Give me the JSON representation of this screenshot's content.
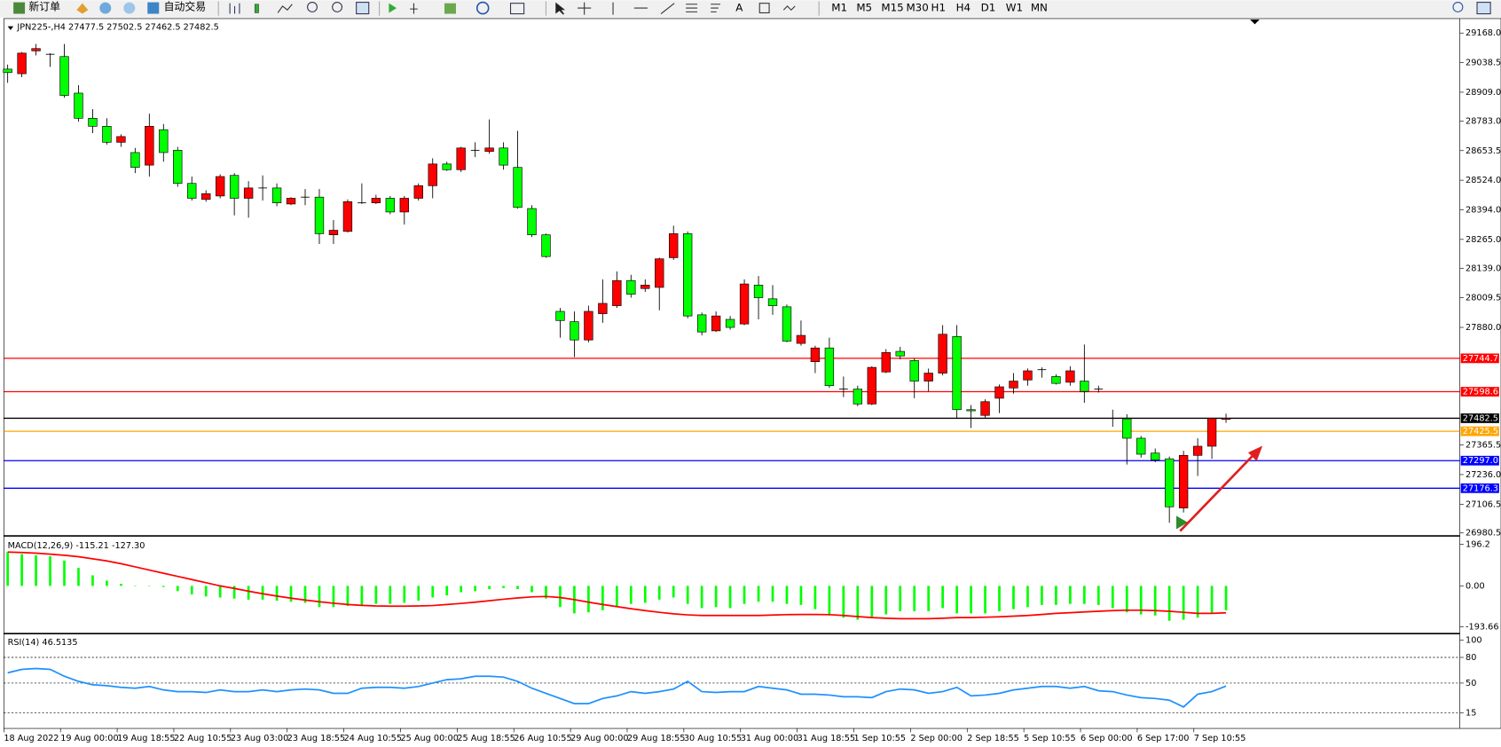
{
  "toolbar": {
    "new_order": "新订单",
    "auto_trading": "自动交易",
    "timeframes": [
      "M1",
      "M5",
      "M15",
      "M30",
      "H1",
      "H4",
      "D1",
      "W1",
      "MN"
    ]
  },
  "chart_data": [
    {
      "type": "candlestick",
      "title": "JPN225-,H4  27477.5 27502.5 27462.5 27482.5",
      "up_color": "#ff0000",
      "down_color": "#00ff00",
      "x_labels": [
        "18 Aug 2022",
        "19 Aug 00:00",
        "19 Aug 18:55",
        "22 Aug 10:55",
        "23 Aug 03:00",
        "23 Aug 18:55",
        "24 Aug 10:55",
        "25 Aug 00:00",
        "25 Aug 18:55",
        "26 Aug 10:55",
        "29 Aug 00:00",
        "29 Aug 18:55",
        "30 Aug 10:55",
        "31 Aug 00:00",
        "31 Aug 18:55",
        "1 Sep 10:55",
        "2 Sep 00:00",
        "2 Sep 18:55",
        "5 Sep 10:55",
        "6 Sep 00:00",
        "6 Sep 17:00",
        "7 Sep 10:55"
      ],
      "open": [
        29010,
        28990,
        29090,
        29075,
        29065,
        28905,
        28795,
        28760,
        28690,
        28645,
        28590,
        28745,
        28655,
        28510,
        28440,
        28455,
        28545,
        28445,
        28490,
        28490,
        28420,
        28450,
        28450,
        28285,
        28300,
        28425,
        28425,
        28445,
        28385,
        28445,
        28500,
        28595,
        28570,
        28655,
        28650,
        28665,
        28580,
        28400,
        28285,
        27950,
        27905,
        27825,
        27940,
        27975,
        28085,
        28050,
        28055,
        28185,
        28290,
        27935,
        27865,
        27915,
        27895,
        28065,
        28005,
        27970,
        27810,
        27730,
        27790,
        27610,
        27610,
        27545,
        27685,
        27775,
        27735,
        27645,
        27680,
        27840,
        27520,
        27495,
        27570,
        27615,
        27650,
        27695,
        27665,
        27640,
        27645,
        27610,
        27482,
        27480,
        27395,
        27330,
        27305,
        27090,
        27320,
        27360,
        27477.5
      ],
      "high": [
        29030,
        29085,
        29120,
        29080,
        29120,
        28940,
        28835,
        28795,
        28725,
        28665,
        28815,
        28770,
        28670,
        28540,
        28480,
        28550,
        28555,
        28520,
        28545,
        28510,
        28450,
        28485,
        28485,
        28350,
        28440,
        28510,
        28460,
        28455,
        28455,
        28510,
        28620,
        28605,
        28670,
        28690,
        28790,
        28690,
        28740,
        28415,
        28290,
        27965,
        27950,
        27975,
        28090,
        28125,
        28110,
        28090,
        28185,
        28325,
        28300,
        27945,
        27950,
        27930,
        28090,
        28105,
        28065,
        27980,
        27910,
        27800,
        27835,
        27665,
        27625,
        27710,
        27785,
        27795,
        27745,
        27700,
        27890,
        27890,
        27540,
        27565,
        27630,
        27680,
        27700,
        27705,
        27675,
        27710,
        27805,
        27625,
        27520,
        27500,
        27405,
        27350,
        27315,
        27340,
        27395,
        27485,
        27502.5
      ],
      "low": [
        28950,
        28975,
        29070,
        29020,
        28885,
        28780,
        28730,
        28680,
        28670,
        28555,
        28540,
        28605,
        28495,
        28435,
        28430,
        28445,
        28370,
        28360,
        28435,
        28410,
        28415,
        28415,
        28245,
        28245,
        28295,
        28420,
        28420,
        28375,
        28330,
        28435,
        28445,
        28565,
        28560,
        28625,
        28640,
        28570,
        28400,
        28275,
        28185,
        27835,
        27750,
        27815,
        27900,
        27965,
        28010,
        28035,
        27955,
        28175,
        27920,
        27845,
        27860,
        27870,
        27890,
        27915,
        27935,
        27815,
        27800,
        27680,
        27615,
        27575,
        27535,
        27540,
        27680,
        27740,
        27570,
        27600,
        27670,
        27480,
        27440,
        27485,
        27505,
        27590,
        27625,
        27660,
        27630,
        27625,
        27550,
        27595,
        27445,
        27280,
        27310,
        27290,
        27025,
        27070,
        27230,
        27305,
        27462.5
      ],
      "close": [
        28995,
        29080,
        29100,
        29075,
        28895,
        28795,
        28760,
        28690,
        28715,
        28580,
        28760,
        28645,
        28510,
        28445,
        28465,
        28540,
        28445,
        28490,
        28490,
        28425,
        28445,
        28450,
        28290,
        28305,
        28430,
        28425,
        28445,
        28385,
        28445,
        28500,
        28595,
        28570,
        28665,
        28655,
        28665,
        28590,
        28405,
        28285,
        28190,
        27910,
        27825,
        27950,
        27985,
        28085,
        28025,
        28065,
        28180,
        28290,
        27930,
        27860,
        27930,
        27880,
        28070,
        28010,
        27975,
        27820,
        27845,
        27790,
        27625,
        27610,
        27545,
        27705,
        27770,
        27755,
        27645,
        27680,
        27850,
        27520,
        27515,
        27555,
        27620,
        27645,
        27690,
        27695,
        27635,
        27690,
        27600,
        27608,
        27480,
        27395,
        27325,
        27300,
        27095,
        27320,
        27360,
        27482,
        27482.5
      ],
      "ylim": [
        26972,
        29227
      ],
      "yticks": [
        {
          "value": 29168,
          "label": "29168.0"
        },
        29038.5,
        {
          "value": 28909,
          "label": "28909.0"
        },
        {
          "value": 28783,
          "label": "28783.0"
        },
        28653.5,
        {
          "value": 28524,
          "label": "28524.0"
        },
        {
          "value": 28394,
          "label": "28394.0"
        },
        {
          "value": 28265,
          "label": "28265.0"
        },
        {
          "value": 28139,
          "label": "28139.0"
        },
        28009.5,
        {
          "value": 27880,
          "label": "27880.0"
        },
        27365.5,
        {
          "value": 27236,
          "label": "27236.0"
        },
        27106.5,
        26980.5
      ],
      "levels": [
        {
          "value": 27744.7,
          "label": "27744.7",
          "color": "#ff0000"
        },
        {
          "value": 27598.6,
          "label": "27598.6",
          "color": "#ff0000"
        },
        {
          "value": 27482.5,
          "label": "27482.5",
          "color": "#000000"
        },
        {
          "value": 27425.5,
          "label": "27425.5",
          "color": "#ffa500"
        },
        {
          "value": 27297,
          "label": "27297.0",
          "color": "#0000ff"
        },
        {
          "value": 27176.3,
          "label": "27176.3",
          "color": "#0000ff"
        }
      ]
    },
    {
      "type": "macd",
      "title": "MACD(12,26,9) -115.21 -127.30",
      "ylim": [
        -221,
        223
      ],
      "yticks": [
        196.2,
        {
          "value": 0,
          "label": "0.00"
        },
        -193.66
      ],
      "series": [
        {
          "style": "bar",
          "color": "#00ff00",
          "values": [
            160,
            150,
            145,
            140,
            120,
            85,
            50,
            25,
            10,
            2,
            -2,
            -5,
            -25,
            -40,
            -50,
            -55,
            -60,
            -65,
            -65,
            -70,
            -75,
            -80,
            -100,
            -100,
            -95,
            -90,
            -85,
            -85,
            -80,
            -70,
            -55,
            -45,
            -30,
            -25,
            -15,
            -10,
            -15,
            -30,
            -60,
            -100,
            -130,
            -125,
            -115,
            -95,
            -85,
            -80,
            -65,
            -55,
            -85,
            -105,
            -100,
            -105,
            -85,
            -75,
            -75,
            -85,
            -90,
            -110,
            -140,
            -150,
            -160,
            -150,
            -135,
            -120,
            -120,
            -120,
            -105,
            -130,
            -130,
            -130,
            -120,
            -110,
            -100,
            -90,
            -90,
            -85,
            -85,
            -90,
            -105,
            -125,
            -135,
            -140,
            -165,
            -160,
            -150,
            -130,
            -115.21
          ]
        },
        {
          "style": "line",
          "color": "#ff0000",
          "values": [
            160,
            158,
            155,
            150,
            145,
            138,
            128,
            118,
            105,
            90,
            75,
            60,
            45,
            30,
            15,
            0,
            -12,
            -25,
            -37,
            -48,
            -58,
            -67,
            -75,
            -82,
            -88,
            -92,
            -95,
            -96,
            -96,
            -95,
            -93,
            -88,
            -83,
            -77,
            -70,
            -63,
            -57,
            -52,
            -50,
            -55,
            -65,
            -77,
            -88,
            -98,
            -108,
            -117,
            -125,
            -132,
            -137,
            -140,
            -140,
            -140,
            -140,
            -140,
            -138,
            -136,
            -135,
            -135,
            -136,
            -140,
            -145,
            -150,
            -153,
            -155,
            -155,
            -155,
            -153,
            -150,
            -150,
            -148,
            -146,
            -143,
            -140,
            -135,
            -130,
            -127,
            -123,
            -120,
            -117,
            -115,
            -115,
            -117,
            -120,
            -125,
            -130,
            -130,
            -127.3
          ]
        }
      ]
    },
    {
      "type": "rsi",
      "title": "RSI(14) 46.5135",
      "ylim": [
        -3,
        105.6
      ],
      "yticks": [
        100,
        80,
        50,
        15
      ],
      "levels": [
        80,
        50,
        15
      ],
      "color": "#1e90ff",
      "values": [
        62,
        66,
        67,
        66,
        58,
        52,
        48,
        47,
        45,
        44,
        46,
        42,
        40,
        40,
        39,
        42,
        40,
        40,
        42,
        40,
        42,
        43,
        42,
        38,
        38,
        44,
        45,
        45,
        44,
        46,
        50,
        54,
        55,
        58,
        58,
        57,
        52,
        44,
        38,
        32,
        26,
        26,
        32,
        35,
        40,
        38,
        40,
        43,
        52,
        40,
        39,
        40,
        40,
        46,
        44,
        42,
        37,
        37,
        36,
        34,
        34,
        33,
        40,
        43,
        42,
        38,
        40,
        45,
        35,
        36,
        38,
        42,
        44,
        46,
        46,
        44,
        46,
        41,
        40,
        36,
        33,
        32,
        30,
        22,
        37,
        40,
        46.5135
      ]
    }
  ]
}
